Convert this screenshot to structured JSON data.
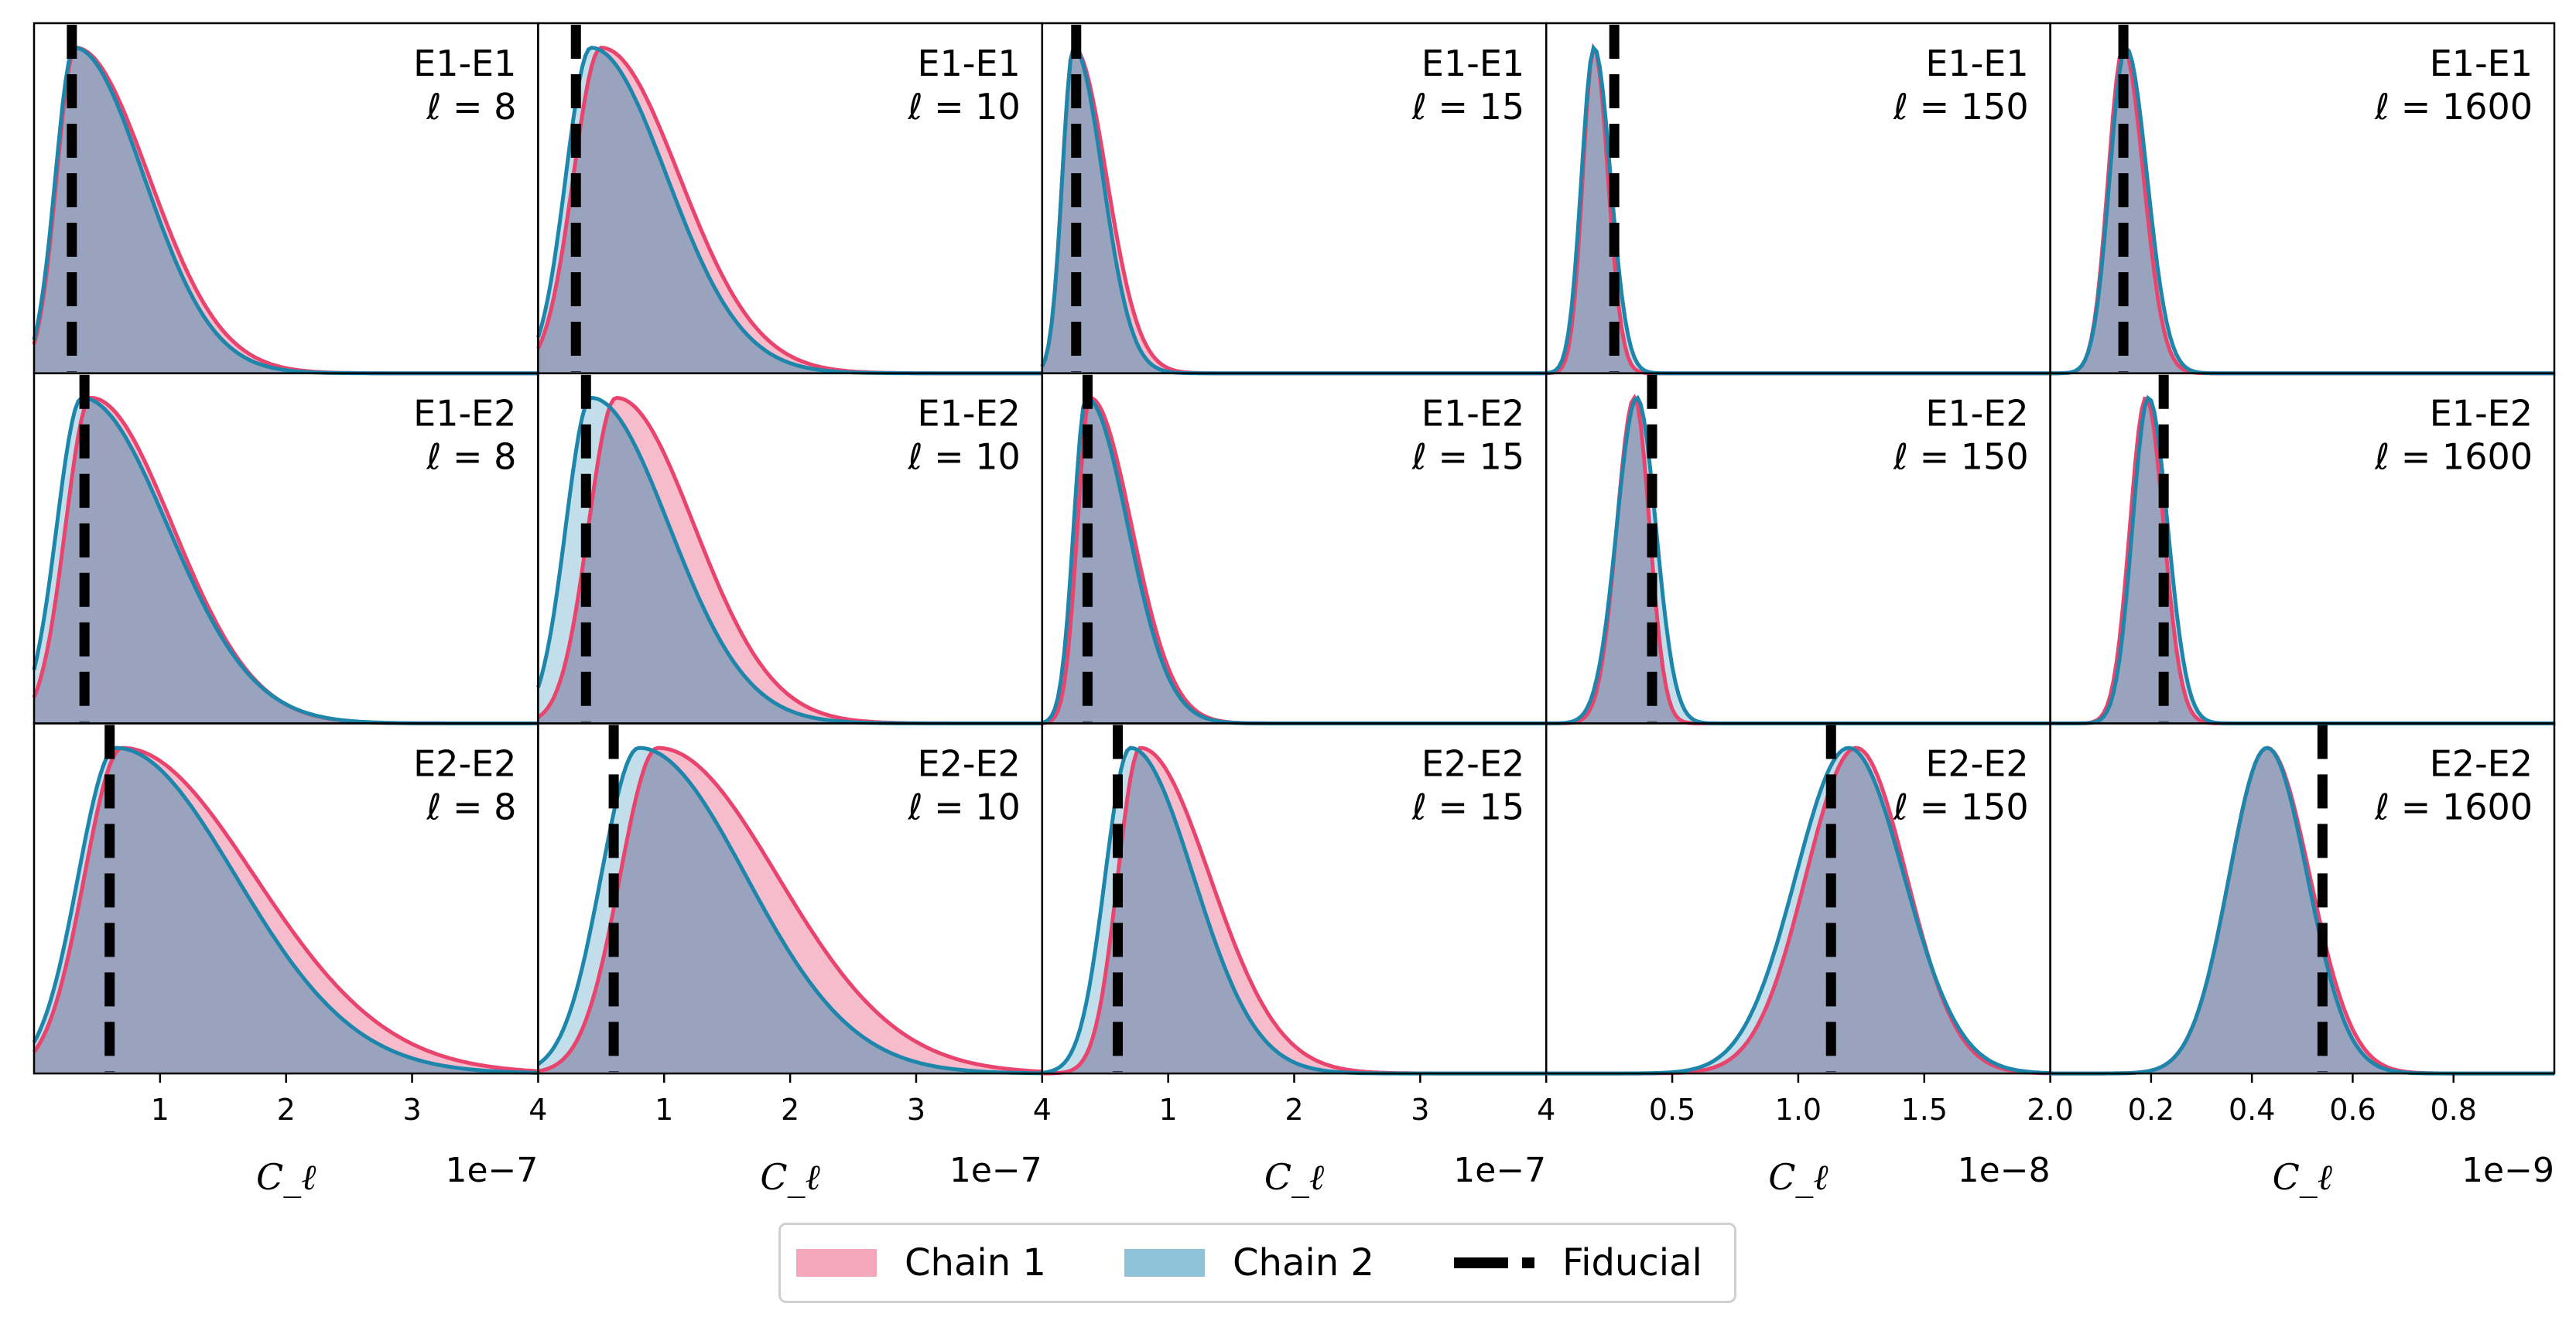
{
  "legend": {
    "chain1_label": "Chain 1",
    "chain2_label": "Chain 2",
    "fiducial_label": "Fiducial"
  },
  "colors": {
    "chain1_line": "#e8446e",
    "chain1_fill": "#f4a6ba",
    "chain2_line": "#1f86ab",
    "chain2_fill": "#8fc3d8",
    "overlap_fill": "#9aa3bd",
    "fiducial": "#000000"
  },
  "chart_data": {
    "type": "area",
    "description_grid": "3 rows x 5 columns of density histograms, rows share x-axis per column",
    "xlabel": "C_ℓ",
    "columns": [
      {
        "ell_label": "ℓ = 8",
        "xlim": [
          0,
          4e-07
        ],
        "offset_label": "1e−7",
        "ticks": [
          1e-07,
          2e-07,
          3e-07,
          4e-07
        ],
        "tick_labels": [
          "1",
          "2",
          "3",
          "4"
        ]
      },
      {
        "ell_label": "ℓ = 10",
        "xlim": [
          0,
          4e-07
        ],
        "offset_label": "1e−7",
        "ticks": [
          1e-07,
          2e-07,
          3e-07,
          4e-07
        ],
        "tick_labels": [
          "1",
          "2",
          "3",
          "4"
        ]
      },
      {
        "ell_label": "ℓ = 15",
        "xlim": [
          0,
          4e-07
        ],
        "offset_label": "1e−7",
        "ticks": [
          1e-07,
          2e-07,
          3e-07,
          4e-07
        ],
        "tick_labels": [
          "1",
          "2",
          "3",
          "4"
        ]
      },
      {
        "ell_label": "ℓ = 150",
        "xlim": [
          0,
          2e-08
        ],
        "offset_label": "1e−8",
        "ticks": [
          5e-09,
          1e-08,
          1.5e-08,
          2e-08
        ],
        "tick_labels": [
          "0.5",
          "1.0",
          "1.5",
          "2.0"
        ]
      },
      {
        "ell_label": "ℓ = 1600",
        "xlim": [
          0,
          1e-09
        ],
        "offset_label": "1e−9",
        "ticks": [
          2e-10,
          4e-10,
          6e-10,
          8e-10
        ],
        "tick_labels": [
          "0.2",
          "0.4",
          "0.6",
          "0.8"
        ]
      }
    ],
    "rows": [
      {
        "pair": "E1-E1",
        "panels": [
          {
            "fiducial": 3e-08,
            "chain1": {
              "peak": 3.3e-08,
              "w_left": 1.5e-08,
              "w_right": 5.8e-08
            },
            "chain2": {
              "peak": 3.2e-08,
              "w_left": 1.5e-08,
              "w_right": 5.5e-08
            }
          },
          {
            "fiducial": 3e-08,
            "chain1": {
              "peak": 5e-08,
              "w_left": 2.2e-08,
              "w_right": 6.2e-08
            },
            "chain2": {
              "peak": 4.2e-08,
              "w_left": 2e-08,
              "w_right": 6e-08
            }
          },
          {
            "fiducial": 2.7e-08,
            "chain1": {
              "peak": 2.5e-08,
              "w_left": 9e-09,
              "w_right": 2.6e-08
            },
            "chain2": {
              "peak": 2.5e-08,
              "w_left": 9e-09,
              "w_right": 2.3e-08
            }
          },
          {
            "fiducial": 2.7e-09,
            "chain1": {
              "peak": 1.9e-09,
              "w_left": 4.5e-10,
              "w_right": 5.5e-10
            },
            "chain2": {
              "peak": 1.9e-09,
              "w_left": 5e-10,
              "w_right": 6.5e-10
            }
          },
          {
            "fiducial": 1.45e-10,
            "chain1": {
              "peak": 1.45e-10,
              "w_left": 3e-11,
              "w_right": 4e-11
            },
            "chain2": {
              "peak": 1.5e-10,
              "w_left": 3.2e-11,
              "w_right": 4.2e-11
            }
          }
        ]
      },
      {
        "pair": "E1-E2",
        "panels": [
          {
            "fiducial": 4e-08,
            "chain1": {
              "peak": 4.5e-08,
              "w_left": 2e-08,
              "w_right": 6.5e-08
            },
            "chain2": {
              "peak": 3.8e-08,
              "w_left": 2e-08,
              "w_right": 6.8e-08
            }
          },
          {
            "fiducial": 3.8e-08,
            "chain1": {
              "peak": 6.2e-08,
              "w_left": 2.2e-08,
              "w_right": 6.2e-08
            },
            "chain2": {
              "peak": 4.2e-08,
              "w_left": 2e-08,
              "w_right": 6.2e-08
            }
          },
          {
            "fiducial": 3.6e-08,
            "chain1": {
              "peak": 3.8e-08,
              "w_left": 1e-08,
              "w_right": 3.3e-08
            },
            "chain2": {
              "peak": 3.5e-08,
              "w_left": 1e-08,
              "w_right": 3.3e-08
            }
          },
          {
            "fiducial": 4.2e-09,
            "chain1": {
              "peak": 3.5e-09,
              "w_left": 7e-10,
              "w_right": 6e-10
            },
            "chain2": {
              "peak": 3.6e-09,
              "w_left": 8e-10,
              "w_right": 7.5e-10
            }
          },
          {
            "fiducial": 2.25e-10,
            "chain1": {
              "peak": 1.9e-10,
              "w_left": 3.2e-11,
              "w_right": 3.5e-11
            },
            "chain2": {
              "peak": 1.95e-10,
              "w_left": 3.2e-11,
              "w_right": 3.8e-11
            }
          }
        ]
      },
      {
        "pair": "E2-E2",
        "panels": [
          {
            "fiducial": 6e-08,
            "chain1": {
              "peak": 7e-08,
              "w_left": 3e-08,
              "w_right": 1.05e-07
            },
            "chain2": {
              "peak": 6.5e-08,
              "w_left": 3e-08,
              "w_right": 9.5e-08
            }
          },
          {
            "fiducial": 6e-08,
            "chain1": {
              "peak": 9.5e-08,
              "w_left": 3e-08,
              "w_right": 9.5e-08
            },
            "chain2": {
              "peak": 8e-08,
              "w_left": 3e-08,
              "w_right": 8.5e-08
            }
          },
          {
            "fiducial": 6e-08,
            "chain1": {
              "peak": 7.8e-08,
              "w_left": 1.8e-08,
              "w_right": 5.5e-08
            },
            "chain2": {
              "peak": 7e-08,
              "w_left": 2e-08,
              "w_right": 5e-08
            }
          },
          {
            "fiducial": 1.13e-08,
            "chain1": {
              "peak": 1.23e-08,
              "w_left": 2e-09,
              "w_right": 2e-09
            },
            "chain2": {
              "peak": 1.2e-08,
              "w_left": 2.1e-09,
              "w_right": 2.2e-09
            }
          },
          {
            "fiducial": 5.4e-10,
            "chain1": {
              "peak": 4.3e-10,
              "w_left": 7.5e-11,
              "w_right": 8.5e-11
            },
            "chain2": {
              "peak": 4.3e-10,
              "w_left": 7.5e-11,
              "w_right": 8e-11
            }
          }
        ]
      }
    ]
  }
}
